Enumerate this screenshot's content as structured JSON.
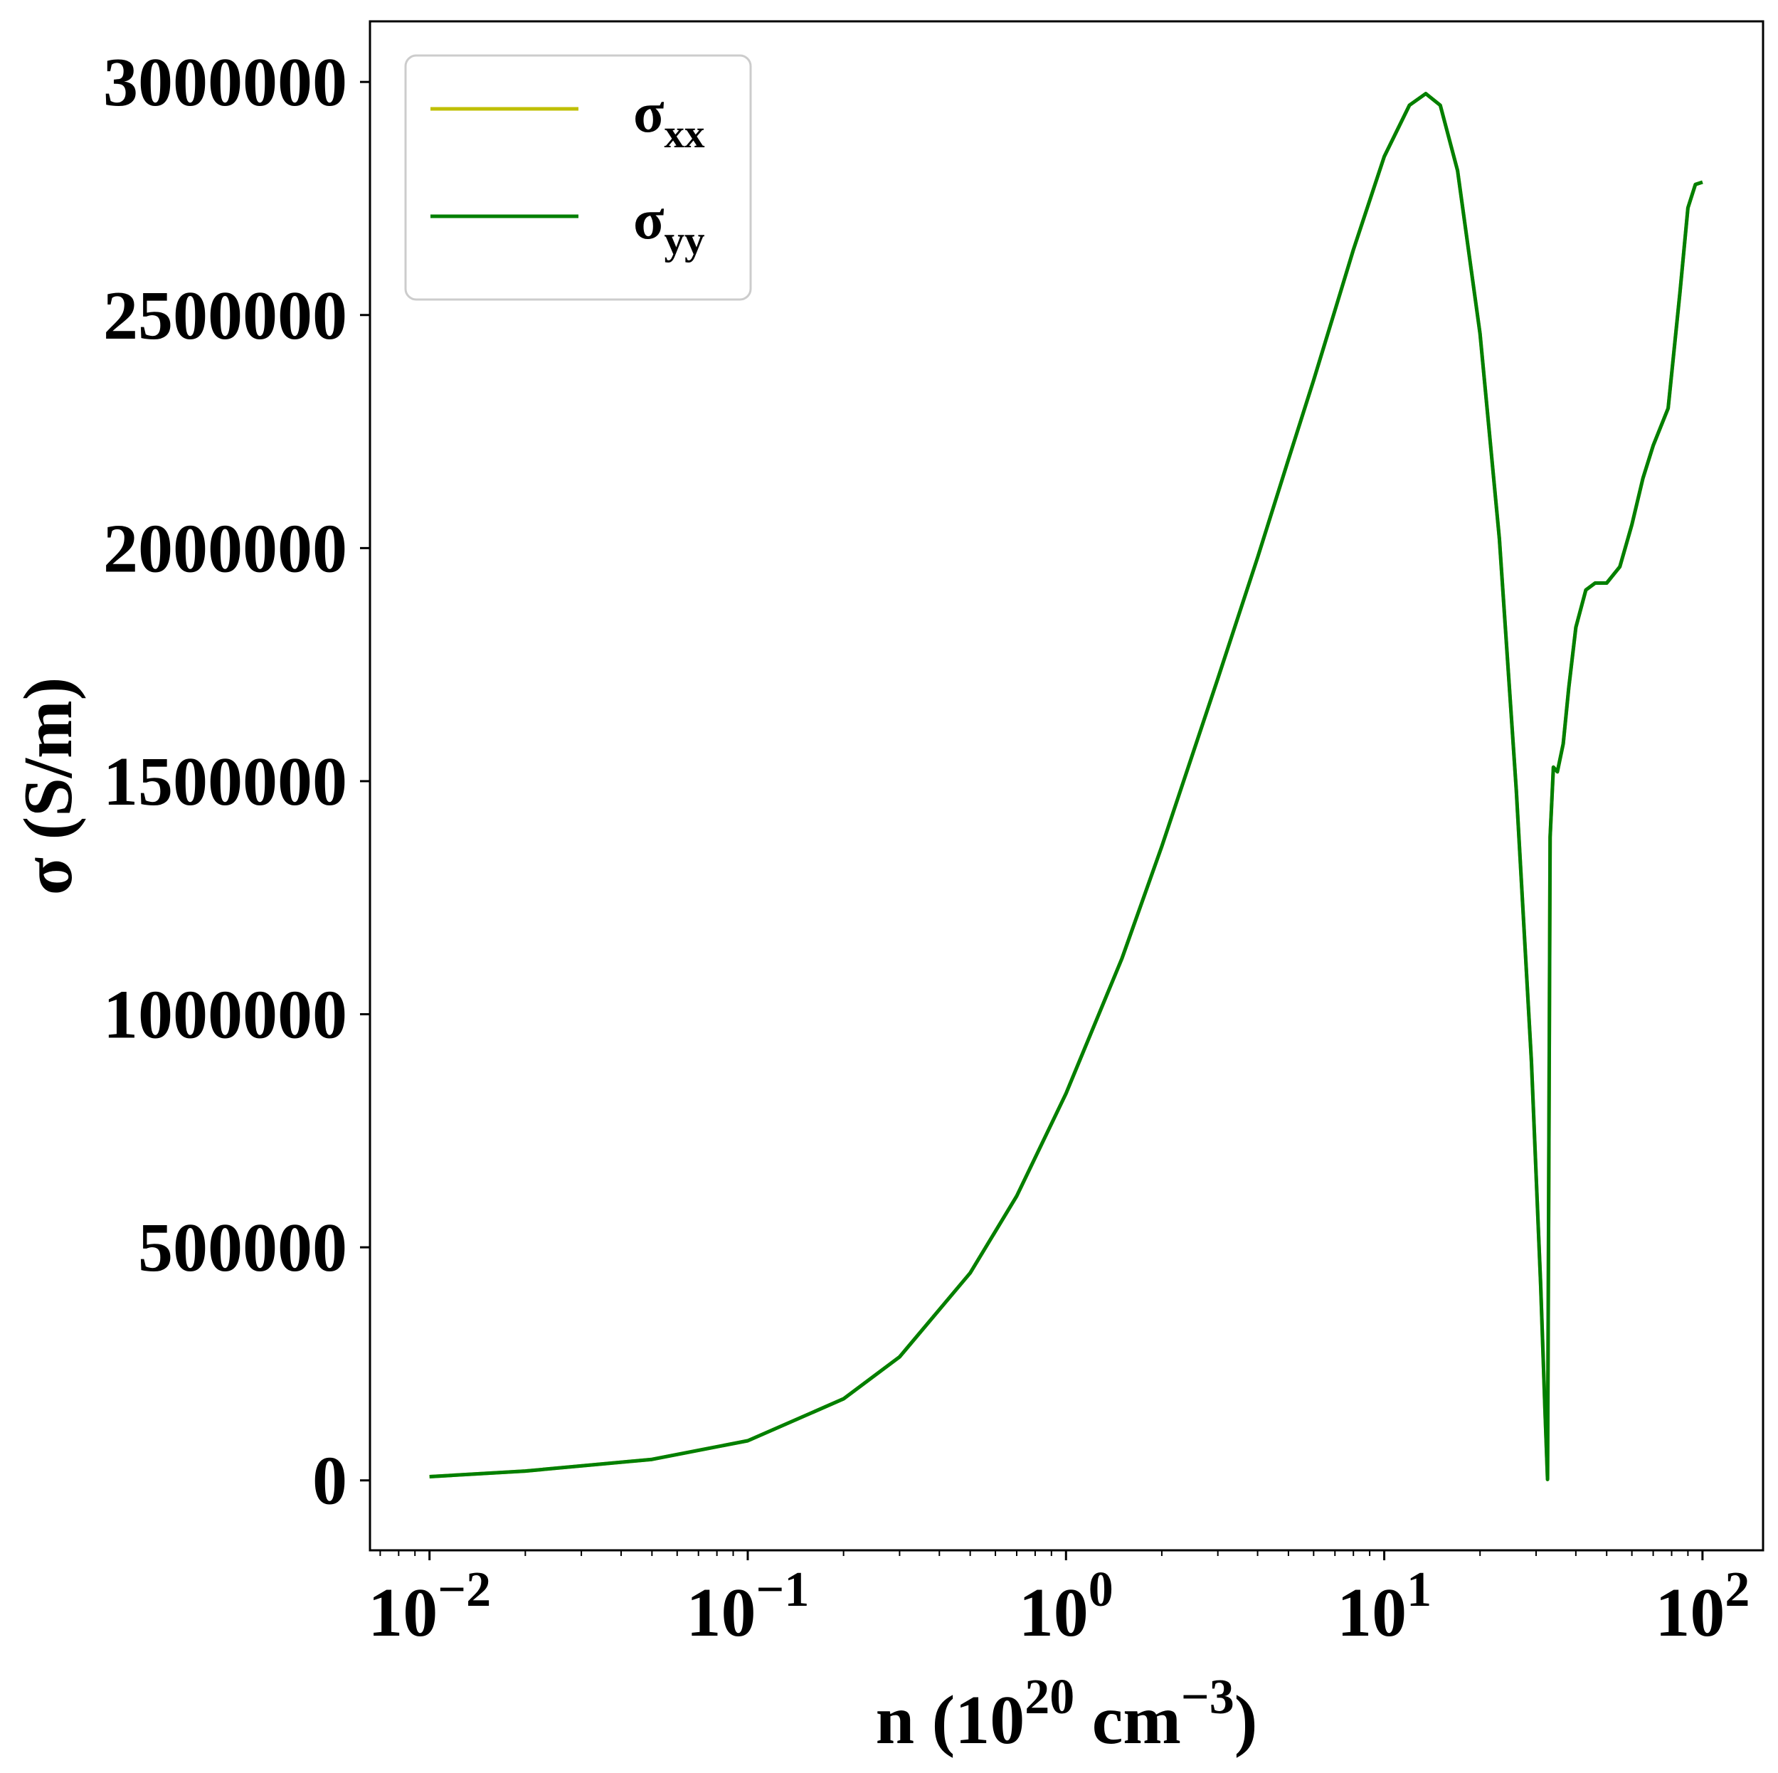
{
  "chart_data": {
    "type": "line",
    "xlabel": "n (10",
    "xlabel_sup": "20",
    "xlabel_mid": " cm",
    "xlabel_sup2": "−3",
    "xlabel_end": ")",
    "ylabel": "σ (S/m)",
    "x_scale": "log",
    "xlim": [
      0.0065,
      155
    ],
    "ylim": [
      -150000,
      3130000
    ],
    "x_ticks": [
      {
        "value": 0.01,
        "base": "10",
        "exp": "−2"
      },
      {
        "value": 0.1,
        "base": "10",
        "exp": "−1"
      },
      {
        "value": 1,
        "base": "10",
        "exp": "0"
      },
      {
        "value": 10,
        "base": "10",
        "exp": "1"
      },
      {
        "value": 100,
        "base": "10",
        "exp": "2"
      }
    ],
    "y_ticks": [
      {
        "value": 0,
        "label": "0"
      },
      {
        "value": 500000,
        "label": "500000"
      },
      {
        "value": 1000000,
        "label": "1000000"
      },
      {
        "value": 1500000,
        "label": "1500000"
      },
      {
        "value": 2000000,
        "label": "2000000"
      },
      {
        "value": 2500000,
        "label": "2500000"
      },
      {
        "value": 3000000,
        "label": "3000000"
      }
    ],
    "grid": false,
    "legend_position": "top-left",
    "series": [
      {
        "name": "σxx",
        "name_base": "σ",
        "name_sub": "xx",
        "color": "#bfbf00",
        "x": [
          0.01,
          0.02,
          0.05,
          0.1,
          0.2,
          0.3,
          0.5,
          0.7,
          1.0,
          1.5,
          2.0,
          3.0,
          4.0,
          5.0,
          6.0,
          7.0,
          8.0,
          10.0,
          12.0,
          13.5,
          15.0,
          17.0,
          20.0,
          23.0,
          26.0,
          29.0,
          31.0,
          32.0,
          32.6,
          33.2,
          34.0,
          35.0,
          36.5,
          38.0,
          40.0,
          43.0,
          46.0,
          50.0,
          55.0,
          60.0,
          65.0,
          70.0,
          78.0,
          85.0,
          90.0,
          95.0,
          100.0
        ],
        "y": [
          8000,
          20000,
          45000,
          85000,
          175000,
          265000,
          445000,
          610000,
          830000,
          1120000,
          1360000,
          1720000,
          1980000,
          2190000,
          2360000,
          2510000,
          2640000,
          2840000,
          2950000,
          2975000,
          2950000,
          2810000,
          2460000,
          2020000,
          1480000,
          900000,
          420000,
          150000,
          2000,
          1380000,
          1530000,
          1520000,
          1580000,
          1700000,
          1830000,
          1910000,
          1925000,
          1925000,
          1960000,
          2050000,
          2150000,
          2220000,
          2300000,
          2550000,
          2730000,
          2780000,
          2785000
        ]
      },
      {
        "name": "σyy",
        "name_base": "σ",
        "name_sub": "yy",
        "color": "#007f00",
        "x": [
          0.01,
          0.02,
          0.05,
          0.1,
          0.2,
          0.3,
          0.5,
          0.7,
          1.0,
          1.5,
          2.0,
          3.0,
          4.0,
          5.0,
          6.0,
          7.0,
          8.0,
          10.0,
          12.0,
          13.5,
          15.0,
          17.0,
          20.0,
          23.0,
          26.0,
          29.0,
          31.0,
          32.0,
          32.6,
          33.2,
          34.0,
          35.0,
          36.5,
          38.0,
          40.0,
          43.0,
          46.0,
          50.0,
          55.0,
          60.0,
          65.0,
          70.0,
          78.0,
          85.0,
          90.0,
          95.0,
          100.0
        ],
        "y": [
          8000,
          20000,
          45000,
          85000,
          175000,
          265000,
          445000,
          610000,
          830000,
          1120000,
          1360000,
          1720000,
          1980000,
          2190000,
          2360000,
          2510000,
          2640000,
          2840000,
          2950000,
          2975000,
          2950000,
          2810000,
          2460000,
          2020000,
          1480000,
          900000,
          420000,
          150000,
          2000,
          1380000,
          1530000,
          1520000,
          1580000,
          1700000,
          1830000,
          1910000,
          1925000,
          1925000,
          1960000,
          2050000,
          2150000,
          2220000,
          2300000,
          2550000,
          2730000,
          2780000,
          2785000
        ]
      }
    ]
  }
}
